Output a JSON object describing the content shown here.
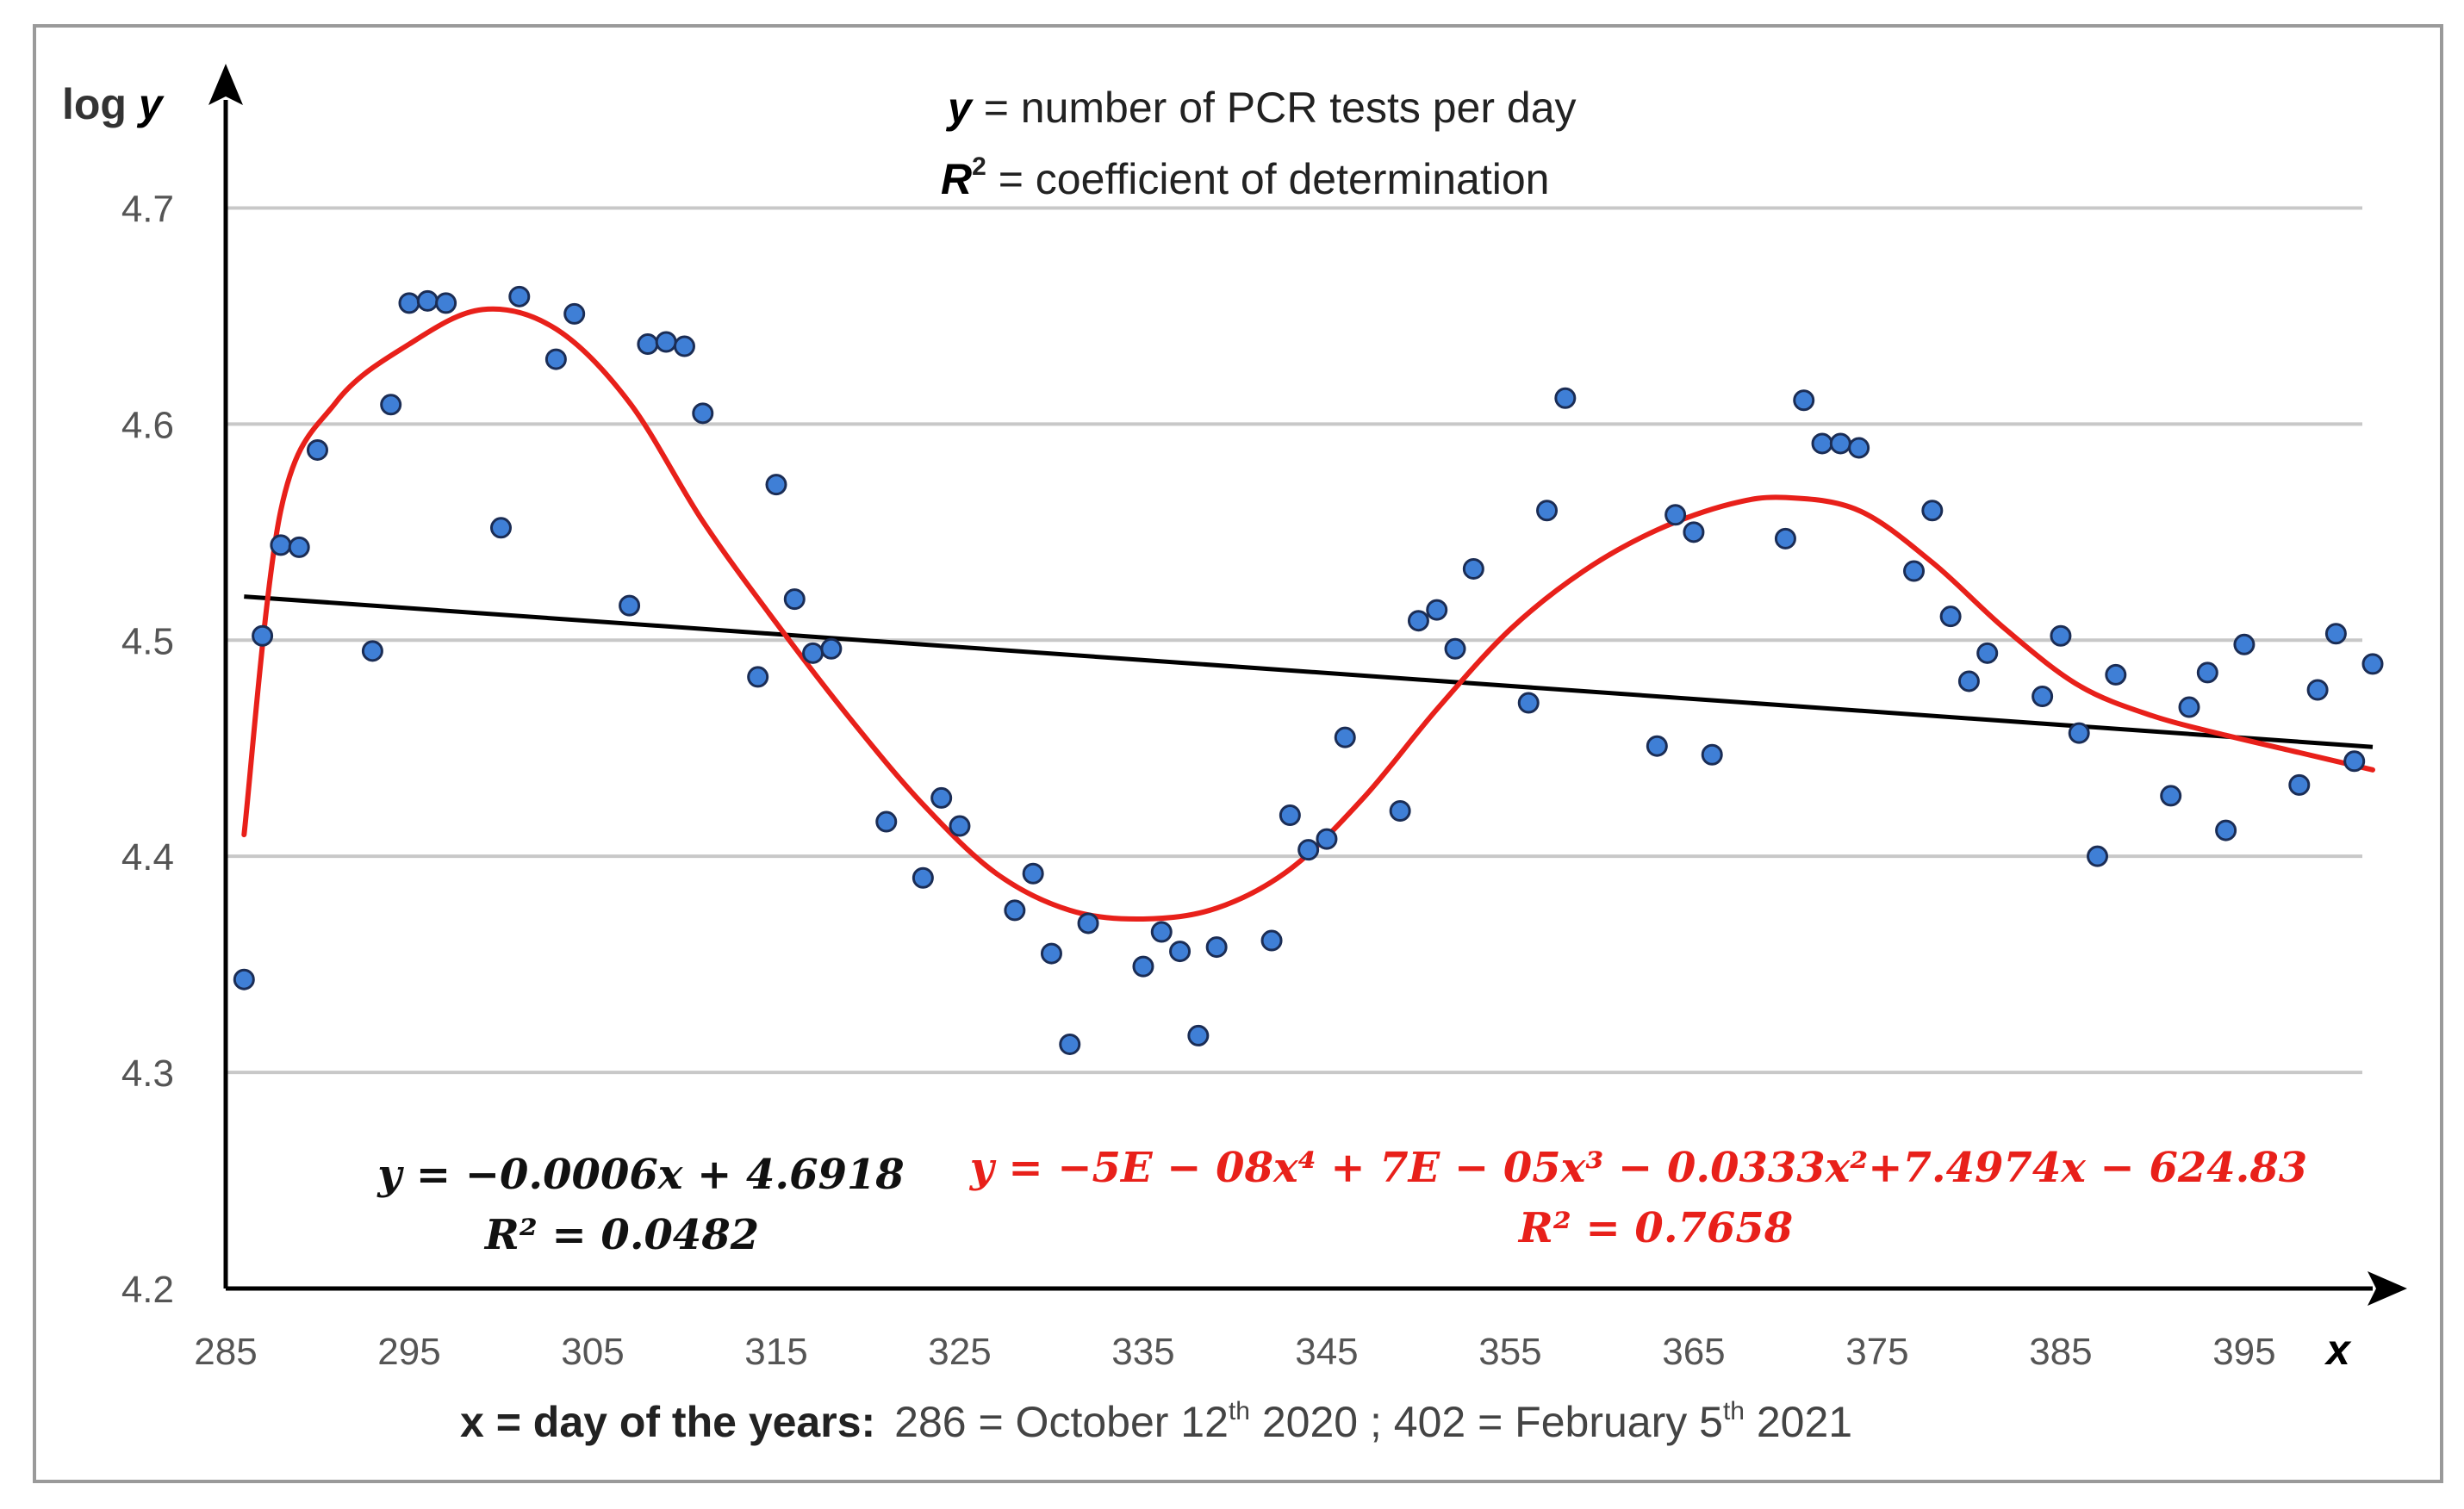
{
  "chart_data": {
    "type": "scatter",
    "y_axis_label": {
      "prefix": "log ",
      "var": "y"
    },
    "x_axis_var": "x",
    "legend": {
      "line1": {
        "var": "y",
        "text": " = number of PCR tests per day"
      },
      "line2": {
        "var": "R",
        "sup": "2",
        "text": " = coefficient of determination"
      }
    },
    "x_caption": {
      "bold": "x = day of the years:",
      "p1": "286 = October 12",
      "sup1": "th",
      "p2": " 2020 ; 402 = February 5",
      "sup2": "th",
      "p3": " 2021"
    },
    "xlim": [
      285,
      402
    ],
    "ylim": [
      4.2,
      4.75
    ],
    "x_ticks": [
      285,
      295,
      305,
      315,
      325,
      335,
      345,
      355,
      365,
      375,
      385,
      395
    ],
    "y_ticks": [
      4.2,
      4.3,
      4.4,
      4.5,
      4.6,
      4.7
    ],
    "y_tick_labels": [
      "4.2",
      "4.3",
      "4.4",
      "4.5",
      "4.6",
      "4.7"
    ],
    "points": [
      [
        286,
        4.343
      ],
      [
        287,
        4.502
      ],
      [
        288,
        4.544
      ],
      [
        289,
        4.543
      ],
      [
        290,
        4.588
      ],
      [
        293,
        4.495
      ],
      [
        294,
        4.609
      ],
      [
        295,
        4.656
      ],
      [
        296,
        4.657
      ],
      [
        297,
        4.656
      ],
      [
        300,
        4.552
      ],
      [
        301,
        4.659
      ],
      [
        303,
        4.63
      ],
      [
        304,
        4.651
      ],
      [
        307,
        4.516
      ],
      [
        308,
        4.637
      ],
      [
        309,
        4.638
      ],
      [
        310,
        4.636
      ],
      [
        311,
        4.605
      ],
      [
        314,
        4.483
      ],
      [
        315,
        4.572
      ],
      [
        316,
        4.519
      ],
      [
        317,
        4.494
      ],
      [
        318,
        4.496
      ],
      [
        321,
        4.416
      ],
      [
        323,
        4.39
      ],
      [
        324,
        4.427
      ],
      [
        325,
        4.414
      ],
      [
        328,
        4.375
      ],
      [
        329,
        4.392
      ],
      [
        330,
        4.355
      ],
      [
        331,
        4.313
      ],
      [
        332,
        4.369
      ],
      [
        335,
        4.349
      ],
      [
        336,
        4.365
      ],
      [
        337,
        4.356
      ],
      [
        338,
        4.317
      ],
      [
        339,
        4.358
      ],
      [
        342,
        4.361
      ],
      [
        343,
        4.419
      ],
      [
        344,
        4.403
      ],
      [
        345,
        4.408
      ],
      [
        346,
        4.455
      ],
      [
        349,
        4.421
      ],
      [
        350,
        4.509
      ],
      [
        351,
        4.514
      ],
      [
        352,
        4.496
      ],
      [
        353,
        4.533
      ],
      [
        356,
        4.471
      ],
      [
        357,
        4.56
      ],
      [
        358,
        4.612
      ],
      [
        363,
        4.451
      ],
      [
        364,
        4.558
      ],
      [
        365,
        4.55
      ],
      [
        366,
        4.447
      ],
      [
        370,
        4.547
      ],
      [
        371,
        4.611
      ],
      [
        372,
        4.591
      ],
      [
        373,
        4.591
      ],
      [
        374,
        4.589
      ],
      [
        377,
        4.532
      ],
      [
        378,
        4.56
      ],
      [
        379,
        4.511
      ],
      [
        380,
        4.481
      ],
      [
        381,
        4.494
      ],
      [
        384,
        4.474
      ],
      [
        385,
        4.502
      ],
      [
        386,
        4.457
      ],
      [
        387,
        4.4
      ],
      [
        388,
        4.484
      ],
      [
        391,
        4.428
      ],
      [
        392,
        4.469
      ],
      [
        393,
        4.485
      ],
      [
        394,
        4.412
      ],
      [
        395,
        4.498
      ],
      [
        398,
        4.433
      ],
      [
        399,
        4.477
      ],
      [
        400,
        4.503
      ],
      [
        401,
        4.444
      ],
      [
        402,
        4.489
      ]
    ],
    "linear_fit": {
      "slope": -0.0006,
      "intercept": 4.6918,
      "x_range": [
        286,
        402
      ]
    },
    "poly_fit_curve": [
      [
        286,
        4.41
      ],
      [
        288,
        4.56
      ],
      [
        291,
        4.61
      ],
      [
        295,
        4.637
      ],
      [
        299,
        4.653
      ],
      [
        303,
        4.644
      ],
      [
        307,
        4.61
      ],
      [
        311,
        4.555
      ],
      [
        315,
        4.508
      ],
      [
        319,
        4.464
      ],
      [
        323,
        4.424
      ],
      [
        327,
        4.392
      ],
      [
        331,
        4.375
      ],
      [
        335,
        4.371
      ],
      [
        339,
        4.376
      ],
      [
        343,
        4.394
      ],
      [
        347,
        4.427
      ],
      [
        351,
        4.468
      ],
      [
        355,
        4.505
      ],
      [
        359,
        4.532
      ],
      [
        363,
        4.551
      ],
      [
        367,
        4.563
      ],
      [
        370,
        4.566
      ],
      [
        374,
        4.56
      ],
      [
        378,
        4.536
      ],
      [
        382,
        4.505
      ],
      [
        386,
        4.479
      ],
      [
        390,
        4.465
      ],
      [
        394,
        4.456
      ],
      [
        398,
        4.448
      ],
      [
        402,
        4.44
      ]
    ],
    "linear_eq": {
      "line1": "y = −0.0006x + 4.6918",
      "line2": "R² = 0.0482"
    },
    "poly_eq": {
      "line1": "y = −5E − 08x⁴ + 7E − 05x³ − 0.0333x²+7.4974x − 624.83",
      "line2": "R² = 0.7658"
    },
    "colors": {
      "points": "#3f7fd6",
      "point_stroke": "#1b2d55",
      "poly": "#e8201a",
      "linear": "#000000",
      "grid": "#c8c8c8"
    }
  }
}
